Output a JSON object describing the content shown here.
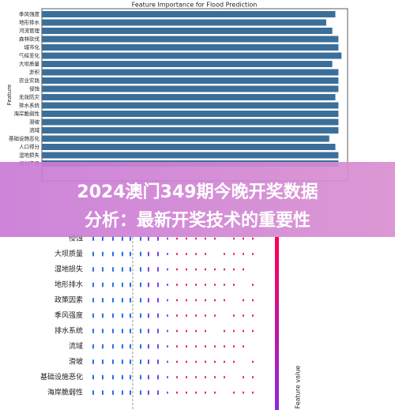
{
  "chart_data": {
    "type": "barh",
    "title": "Feature Importance for Flood Prediction",
    "ylabel": "Feature",
    "categories": [
      "季风强度",
      "地形排水",
      "河流管理",
      "森林砍伐",
      "城市化",
      "气候变化",
      "大坝质量",
      "淤积",
      "农业实践",
      "侵蚀",
      "无效防灾",
      "排水系统",
      "海岸脆弱性",
      "滑坡",
      "流域",
      "基础设施恶化",
      "人口得分",
      "湿地损失",
      "规划不足"
    ],
    "values": [
      0.96,
      0.93,
      0.95,
      0.97,
      0.97,
      0.98,
      0.95,
      0.97,
      0.97,
      0.97,
      0.96,
      0.97,
      0.97,
      0.97,
      0.97,
      0.94,
      0.96,
      0.97,
      0.97
    ],
    "color": "#3b6f99",
    "xlim": [
      0,
      1
    ]
  },
  "overlay": {
    "line1": "2024澳门349期今晚开奖数据",
    "line2": "分析：最新开奖技术的重要性"
  },
  "summary_plot": {
    "features": [
      "侵蚀",
      "大坝质量",
      "湿地损失",
      "地形排水",
      "政策因素",
      "季风强度",
      "排水系统",
      "流域",
      "滑坡",
      "基础设施恶化",
      "海岸脆弱性"
    ],
    "colorbar_label": "Feature value"
  }
}
